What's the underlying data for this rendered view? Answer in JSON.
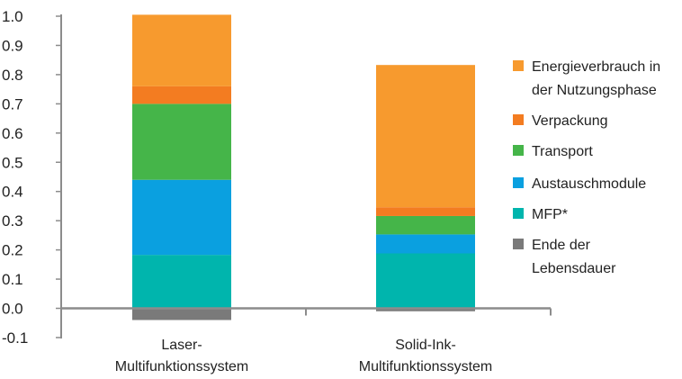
{
  "chart_data": {
    "type": "bar",
    "stacked": true,
    "categories": [
      [
        "Laser-",
        "Multifunktionssystem"
      ],
      [
        "Solid-Ink-",
        "Multifunktionssystem"
      ]
    ],
    "series": [
      {
        "name": "Ende der Lebensdauer",
        "legend_lines": [
          "Ende der",
          "Lebensdauer"
        ],
        "color": "#7a7a7a",
        "values": [
          -0.04,
          -0.01
        ]
      },
      {
        "name": "MFP*",
        "legend_lines": [
          "MFP*"
        ],
        "color": "#00b5ad",
        "values": [
          0.183,
          0.188
        ]
      },
      {
        "name": "Austauschmodule",
        "legend_lines": [
          "Austauschmodule"
        ],
        "color": "#0aa0e0",
        "values": [
          0.257,
          0.065
        ]
      },
      {
        "name": "Transport",
        "legend_lines": [
          "Transport"
        ],
        "color": "#45b549",
        "values": [
          0.26,
          0.063
        ]
      },
      {
        "name": "Verpackung",
        "legend_lines": [
          "Verpackung"
        ],
        "color": "#f37c21",
        "values": [
          0.06,
          0.03
        ]
      },
      {
        "name": "Energieverbrauch in der Nutzungsphase",
        "legend_lines": [
          "Energieverbrauch in",
          "der Nutzungsphase"
        ],
        "color": "#f79a2e",
        "values": [
          0.245,
          0.487
        ]
      }
    ],
    "legend_order": [
      5,
      4,
      3,
      2,
      1,
      0
    ],
    "ylim": [
      -0.1,
      1.0
    ],
    "yticks": [
      "1.0",
      "0.9",
      "0.8",
      "0.7",
      "0.6",
      "0.5",
      "0.4",
      "0.3",
      "0.2",
      "0.1",
      "0.0",
      "-0.1"
    ],
    "ytick_values": [
      1.0,
      0.9,
      0.8,
      0.7,
      0.6,
      0.5,
      0.4,
      0.3,
      0.2,
      0.1,
      0.0,
      -0.1
    ],
    "axis_color": "#8c8c8c",
    "legend_position": "right"
  }
}
